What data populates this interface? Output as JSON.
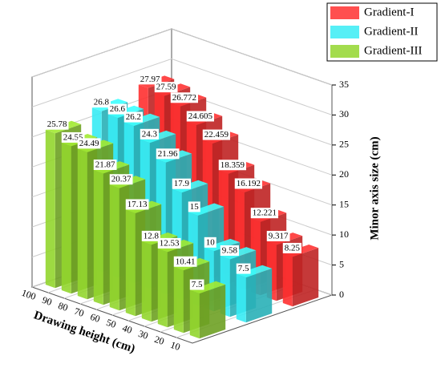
{
  "chart_data": {
    "type": "bar3d",
    "xlabel": "Drawing height (cm)",
    "ylabel": "Minor axis size (cm)",
    "categories": [
      100,
      90,
      80,
      70,
      60,
      50,
      40,
      30,
      20,
      10
    ],
    "series": [
      {
        "name": "Gradient-I",
        "color": "#ff3030",
        "values": [
          27.97,
          27.59,
          26.772,
          24.605,
          22.459,
          18.359,
          16.192,
          12.221,
          9.317,
          8.25
        ]
      },
      {
        "name": "Gradient-II",
        "color": "#38ecf5",
        "values": [
          26.8,
          26.6,
          26.2,
          24.3,
          21.96,
          17.9,
          15,
          10,
          9.58,
          7.5
        ]
      },
      {
        "name": "Gradient-III",
        "color": "#93d62e",
        "values": [
          25.78,
          24.55,
          24.49,
          21.87,
          20.37,
          17.13,
          12.8,
          12.53,
          10.41,
          7.5
        ]
      }
    ],
    "ylim": [
      0,
      35
    ],
    "yticks": [
      0,
      5,
      10,
      15,
      20,
      25,
      30,
      35
    ],
    "grid": true,
    "legend": "top-right"
  }
}
